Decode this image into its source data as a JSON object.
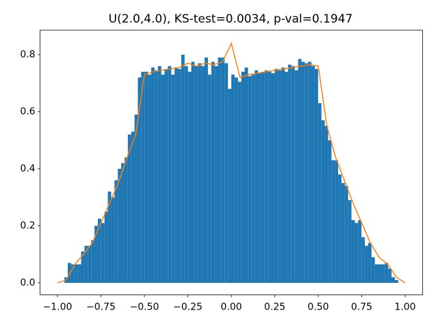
{
  "chart_data": {
    "type": "histogram",
    "title": "U(2.0,4.0), KS-test=0.0034, p-val=0.1947",
    "color": "#1f77b4",
    "bins": [
      -0.96,
      -0.9408,
      -0.9216,
      -0.9024,
      -0.8832,
      -0.864,
      -0.8448,
      -0.8256,
      -0.8064,
      -0.7872,
      -0.768,
      -0.7488,
      -0.7296,
      -0.7104,
      -0.6912,
      -0.672,
      -0.6528,
      -0.6336,
      -0.6144,
      -0.5952,
      -0.576,
      -0.5568,
      -0.5376,
      -0.5184,
      -0.4992,
      -0.48,
      -0.4608,
      -0.4416,
      -0.4224,
      -0.4032,
      -0.384,
      -0.3648,
      -0.3456,
      -0.3264,
      -0.3072,
      -0.288,
      -0.2688,
      -0.2496,
      -0.2304,
      -0.2112,
      -0.192,
      -0.1728,
      -0.1536,
      -0.1344,
      -0.1152,
      -0.096,
      -0.0768,
      -0.0576,
      -0.0384,
      -0.0192,
      0,
      0.0192,
      0.0384,
      0.0576,
      0.0768,
      0.096,
      0.1152,
      0.1344,
      0.1536,
      0.1728,
      0.192,
      0.2112,
      0.2304,
      0.2496,
      0.2688,
      0.288,
      0.3072,
      0.3264,
      0.3456,
      0.3648,
      0.384,
      0.4032,
      0.4224,
      0.4416,
      0.4608,
      0.48,
      0.4992,
      0.5184,
      0.5376,
      0.5568,
      0.576,
      0.5952,
      0.6144,
      0.6336,
      0.6528,
      0.672,
      0.6912,
      0.7104,
      0.7296,
      0.7488,
      0.768,
      0.7872,
      0.8064,
      0.8256,
      0.8448,
      0.864,
      0.8832,
      0.9024,
      0.9216,
      0.9408,
      0.96
    ],
    "values": [
      0.02,
      0.07,
      0.065,
      0.065,
      0.065,
      0.11,
      0.13,
      0.13,
      0.15,
      0.2,
      0.225,
      0.21,
      0.25,
      0.32,
      0.3,
      0.36,
      0.4,
      0.42,
      0.44,
      0.52,
      0.53,
      0.59,
      0.72,
      0.74,
      0.74,
      0.73,
      0.755,
      0.745,
      0.76,
      0.73,
      0.75,
      0.76,
      0.73,
      0.755,
      0.75,
      0.8,
      0.76,
      0.74,
      0.775,
      0.76,
      0.77,
      0.76,
      0.79,
      0.73,
      0.775,
      0.76,
      0.79,
      0.79,
      0.77,
      0.68,
      0.73,
      0.72,
      0.705,
      0.74,
      0.755,
      0.725,
      0.73,
      0.745,
      0.735,
      0.74,
      0.745,
      0.74,
      0.735,
      0.75,
      0.745,
      0.755,
      0.74,
      0.765,
      0.76,
      0.745,
      0.785,
      0.775,
      0.77,
      0.775,
      0.76,
      0.75,
      0.63,
      0.57,
      0.55,
      0.5,
      0.43,
      0.43,
      0.38,
      0.35,
      0.34,
      0.29,
      0.22,
      0.21,
      0.22,
      0.16,
      0.13,
      0.14,
      0.09,
      0.065,
      0.065,
      0.065,
      0.07,
      0.05,
      0.02,
      0.01
    ],
    "line": {
      "color": "#ff7f0e",
      "x": [
        -1.0,
        -0.95,
        -0.9,
        -0.85,
        -0.8,
        -0.75,
        -0.7,
        -0.65,
        -0.6,
        -0.55,
        -0.5,
        -0.45,
        -0.4,
        -0.35,
        -0.3,
        -0.25,
        -0.2,
        -0.15,
        -0.1,
        -0.05,
        0.0,
        0.05,
        0.1,
        0.15,
        0.2,
        0.25,
        0.3,
        0.35,
        0.4,
        0.45,
        0.5,
        0.55,
        0.6,
        0.65,
        0.7,
        0.75,
        0.8,
        0.85,
        0.9,
        0.95,
        1.0
      ],
      "values": [
        0.0,
        0.01,
        0.065,
        0.1,
        0.14,
        0.21,
        0.28,
        0.35,
        0.44,
        0.52,
        0.73,
        0.74,
        0.745,
        0.75,
        0.755,
        0.77,
        0.76,
        0.77,
        0.765,
        0.775,
        0.84,
        0.72,
        0.73,
        0.735,
        0.74,
        0.745,
        0.75,
        0.755,
        0.76,
        0.765,
        0.76,
        0.55,
        0.44,
        0.36,
        0.28,
        0.21,
        0.14,
        0.09,
        0.065,
        0.02,
        0.0
      ]
    },
    "xlim": [
      -1.1,
      1.1
    ],
    "ylim": [
      -0.042,
      0.886
    ],
    "xticks": [
      {
        "value": -1.0,
        "label": "−1.00"
      },
      {
        "value": -0.75,
        "label": "−0.75"
      },
      {
        "value": -0.5,
        "label": "−0.50"
      },
      {
        "value": -0.25,
        "label": "−0.25"
      },
      {
        "value": 0,
        "label": "0.00"
      },
      {
        "value": 0.25,
        "label": "0.25"
      },
      {
        "value": 0.5,
        "label": "0.50"
      },
      {
        "value": 0.75,
        "label": "0.75"
      },
      {
        "value": 1.0,
        "label": "1.00"
      }
    ],
    "yticks": [
      {
        "value": 0,
        "label": "0.0"
      },
      0.2,
      0.4,
      0.6,
      0.8
    ]
  }
}
